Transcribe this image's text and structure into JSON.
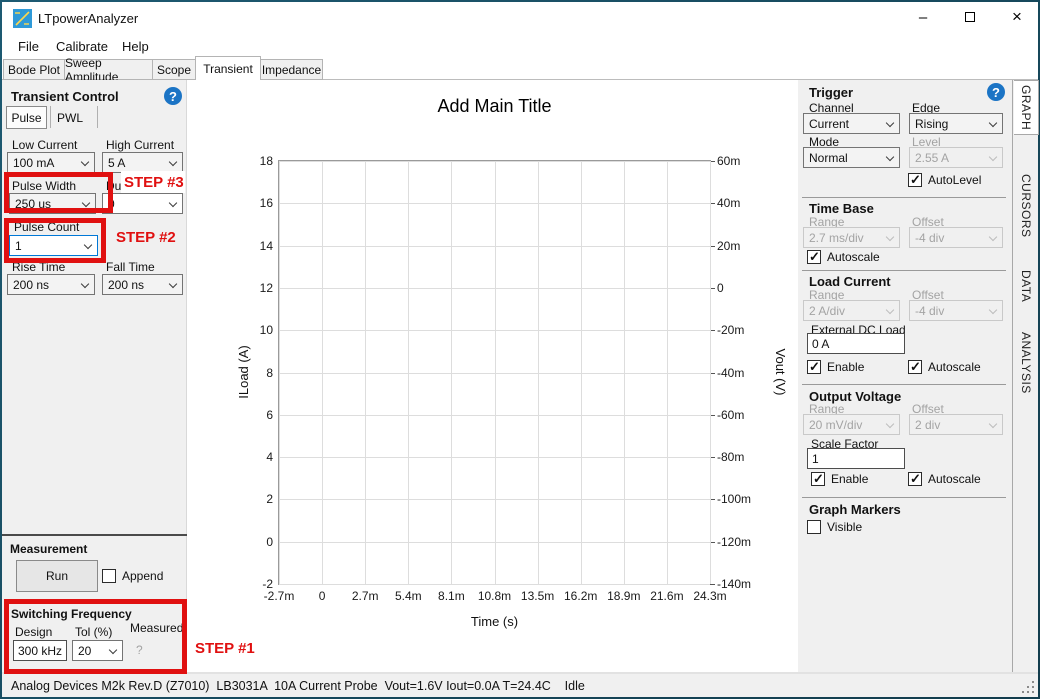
{
  "window": {
    "title": "LTpowerAnalyzer",
    "minimize_glyph": "–",
    "close_glyph": "×"
  },
  "menu": {
    "items": [
      "File",
      "Calibrate",
      "Help"
    ]
  },
  "tabs": {
    "items": [
      "Bode Plot",
      "Sweep Amplitude",
      "Scope",
      "Transient",
      "Impedance"
    ],
    "selected": "Transient"
  },
  "help_glyph": "?",
  "left_panel": {
    "title": "Transient Control",
    "sub_tabs": {
      "pulse": "Pulse",
      "pwl": "PWL",
      "selected": "Pulse"
    },
    "low_current": {
      "label": "Low Current",
      "value": "100 mA"
    },
    "high_current": {
      "label": "High Current",
      "value": "5 A"
    },
    "pulse_width": {
      "label": "Pulse Width",
      "value": "250 us"
    },
    "duty": {
      "label": "Du",
      "value": "0"
    },
    "pulse_count": {
      "label": "Pulse Count",
      "value": "1"
    },
    "rise_time": {
      "label": "Rise Time",
      "value": "200 ns"
    },
    "fall_time": {
      "label": "Fall Time",
      "value": "200 ns"
    },
    "measurement": {
      "title": "Measurement",
      "run_label": "Run",
      "append": {
        "label": "Append",
        "checked": false
      }
    },
    "switching_frequency": {
      "title": "Switching Frequency",
      "design_label": "Design",
      "design_value": "300 kHz",
      "tol_label": "Tol (%)",
      "tol_value": "20",
      "measured_label": "Measured",
      "measured_value": "?"
    }
  },
  "graph": {
    "title": "Add Main Title",
    "xlabel": "Time (s)",
    "ylabel_left": "ILoad (A)",
    "ylabel_right": "Vout (V)",
    "y_left_ticks": [
      "18",
      "16",
      "14",
      "12",
      "10",
      "8",
      "6",
      "4",
      "2",
      "0",
      "-2"
    ],
    "y_right_ticks": [
      "60m",
      "40m",
      "20m",
      "0",
      "-20m",
      "-40m",
      "-60m",
      "-80m",
      "-100m",
      "-120m",
      "-140m"
    ],
    "x_ticks": [
      "-2.7m",
      "0",
      "2.7m",
      "5.4m",
      "8.1m",
      "10.8m",
      "13.5m",
      "16.2m",
      "18.9m",
      "21.6m",
      "24.3m"
    ]
  },
  "right_panel": {
    "trigger": {
      "title": "Trigger",
      "channel_label": "Channel",
      "channel_value": "Current",
      "edge_label": "Edge",
      "edge_value": "Rising",
      "mode_label": "Mode",
      "mode_value": "Normal",
      "level_label": "Level",
      "level_value": "2.55 A",
      "autolevel": {
        "label": "AutoLevel",
        "checked": true
      }
    },
    "time_base": {
      "title": "Time Base",
      "range_label": "Range",
      "range_value": "2.7 ms/div",
      "offset_label": "Offset",
      "offset_value": "-4 div",
      "autoscale": {
        "label": "Autoscale",
        "checked": true
      }
    },
    "load_current": {
      "title": "Load Current",
      "range_label": "Range",
      "range_value": "2 A/div",
      "offset_label": "Offset",
      "offset_value": "-4 div",
      "ext_dc_label": "External DC Load",
      "ext_dc_value": "0 A",
      "enable": {
        "label": "Enable",
        "checked": true
      },
      "autoscale": {
        "label": "Autoscale",
        "checked": true
      }
    },
    "output_voltage": {
      "title": "Output Voltage",
      "range_label": "Range",
      "range_value": "20 mV/div",
      "offset_label": "Offset",
      "offset_value": "2 div",
      "scale_factor_label": "Scale Factor",
      "scale_factor_value": "1",
      "enable": {
        "label": "Enable",
        "checked": true
      },
      "autoscale": {
        "label": "Autoscale",
        "checked": true
      }
    },
    "graph_markers": {
      "title": "Graph Markers",
      "visible": {
        "label": "Visible",
        "checked": false
      }
    }
  },
  "side_tabs": {
    "items": [
      "GRAPH",
      "CURSORS",
      "DATA",
      "ANALYSIS"
    ],
    "selected": "GRAPH"
  },
  "annotations": {
    "step1": "STEP #1",
    "step2": "STEP #2",
    "step3": "STEP #3",
    "color": "#e01010"
  },
  "status_bar": {
    "text": "Analog Devices M2k Rev.D (Z7010)  LB3031A  10A Current Probe  Vout=1.6V Iout=0.0A T=24.4C    Idle"
  },
  "colors": {
    "accent_blue": "#1b74c5",
    "focus_blue": "#0078d7",
    "annotation_red": "#e01010"
  }
}
